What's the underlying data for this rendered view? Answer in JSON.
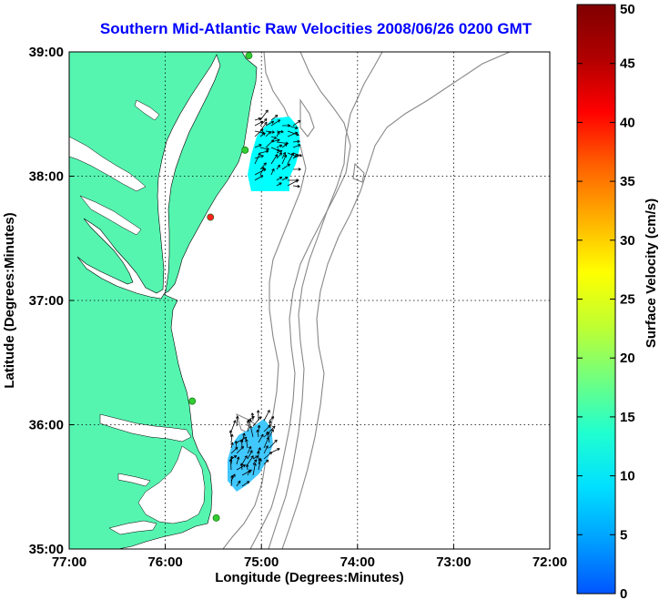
{
  "title": "Southern Mid-Atlantic Raw Velocities 2008/06/26 0200 GMT",
  "x_axis": {
    "label": "Longitude (Degrees:Minutes)",
    "ticks": [
      "77:00",
      "76:00",
      "75:00",
      "74:00",
      "73:00",
      "72:00"
    ]
  },
  "y_axis": {
    "label": "Latitude (Degrees:Minutes)",
    "ticks": [
      "39:00",
      "38:00",
      "37:00",
      "36:00",
      "35:00"
    ]
  },
  "colorbar": {
    "label": "Surface Velocity (cm/s)",
    "ticks": [
      "50",
      "45",
      "40",
      "35",
      "30",
      "25",
      "20",
      "15",
      "10",
      "5",
      "0"
    ],
    "range": [
      0,
      50
    ],
    "colors": [
      "#0055ff",
      "#00a0ff",
      "#00e0ff",
      "#20ffd0",
      "#70ff80",
      "#c0ff30",
      "#ffff00",
      "#ffb000",
      "#ff6000",
      "#ff0000",
      "#b00000",
      "#800000"
    ]
  },
  "map": {
    "lon_range": [
      -77,
      -72
    ],
    "lat_range": [
      35,
      39
    ],
    "land_color": "#55f5b0",
    "grid": true,
    "stations": [
      {
        "lon": -75.13,
        "lat": 38.97,
        "status": "active"
      },
      {
        "lon": -75.17,
        "lat": 38.21,
        "status": "active"
      },
      {
        "lon": -75.53,
        "lat": 37.67,
        "status": "inactive"
      },
      {
        "lon": -75.72,
        "lat": 36.19,
        "status": "active"
      },
      {
        "lon": -75.47,
        "lat": 35.25,
        "status": "active"
      }
    ]
  },
  "colors": {
    "active_station": "#33cc33",
    "inactive_station": "#ff2020",
    "vector_patch_north": "#00ffff",
    "vector_patch_south": "#40c8ff"
  }
}
